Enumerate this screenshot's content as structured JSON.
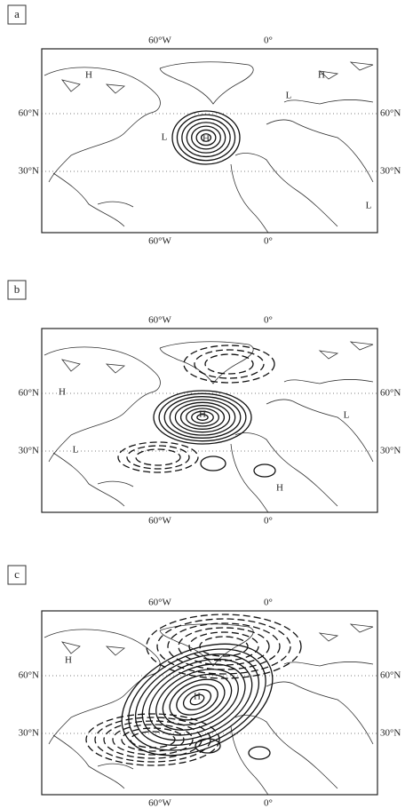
{
  "panels": [
    {
      "label": "a",
      "top_labels": [
        "60°W",
        "0°"
      ],
      "bottom_labels": [
        "60°W",
        "0°"
      ],
      "left_labels": [
        "60°N",
        "30°N"
      ],
      "right_labels": [
        "60°N",
        "30°N"
      ],
      "markers": [
        "H",
        "H",
        "L",
        "L",
        "H",
        "L"
      ]
    },
    {
      "label": "b",
      "top_labels": [
        "60°W",
        "0°"
      ],
      "bottom_labels": [
        "60°W",
        "0°"
      ],
      "left_labels": [
        "60°N",
        "30°N"
      ],
      "right_labels": [
        "60°N",
        "30°N"
      ],
      "markers": [
        "H",
        "L",
        "H",
        "L",
        "H"
      ]
    },
    {
      "label": "c",
      "top_labels": [
        "60°W",
        "0°"
      ],
      "bottom_labels": [
        "60°W",
        "0°"
      ],
      "left_labels": [
        "60°N",
        "30°N"
      ],
      "right_labels": [
        "60°N",
        "30°N"
      ],
      "markers": [
        "H",
        "H"
      ]
    }
  ]
}
